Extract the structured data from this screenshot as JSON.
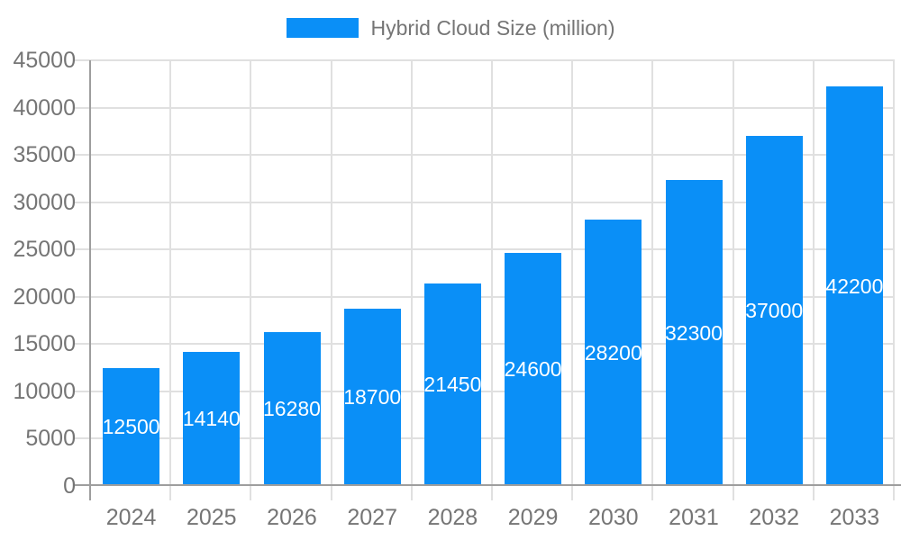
{
  "legend": {
    "label": "Hybrid Cloud Size (million)"
  },
  "chart_data": {
    "type": "bar",
    "title": "",
    "xlabel": "",
    "ylabel": "",
    "categories": [
      "2024",
      "2025",
      "2026",
      "2027",
      "2028",
      "2029",
      "2030",
      "2031",
      "2032",
      "2033"
    ],
    "values": [
      12500,
      14140,
      16280,
      18700,
      21450,
      24600,
      28200,
      32300,
      37000,
      42200
    ],
    "bar_labels": [
      "12500",
      "14140",
      "16280",
      "18700",
      "21450",
      "24600",
      "28200",
      "32300",
      "37000",
      "42200"
    ],
    "series_name": "Hybrid Cloud Size (million)",
    "ylim": [
      0,
      45000
    ],
    "yticks": [
      0,
      5000,
      10000,
      15000,
      20000,
      25000,
      30000,
      35000,
      40000,
      45000
    ],
    "grid": true,
    "legend_position": "top",
    "colors": {
      "bar": "#0a8ff7",
      "bar_label": "#ffffff",
      "axis_text": "#757575",
      "grid": "#e0e0e0",
      "axis_line": "#9e9e9e",
      "background": "#ffffff"
    }
  }
}
